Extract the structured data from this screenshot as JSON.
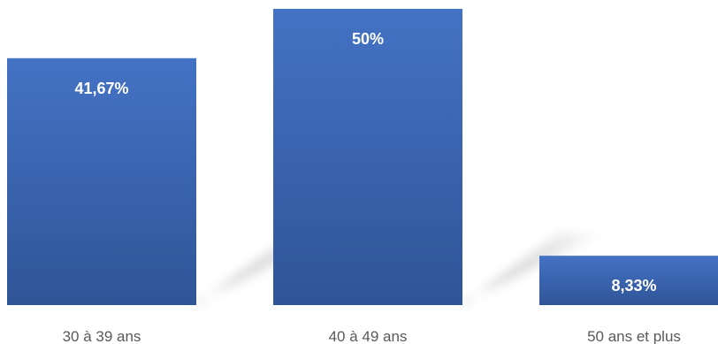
{
  "chart_data": {
    "type": "bar",
    "categories": [
      "30 à 39 ans",
      "40 à 49 ans",
      "50 ans et plus"
    ],
    "values": [
      41.67,
      50,
      8.33
    ],
    "data_labels": [
      "41,67%",
      "50%",
      "8,33%"
    ],
    "title": "",
    "xlabel": "",
    "ylabel": "",
    "ylim": [
      0,
      50
    ],
    "grid": false,
    "legend": "none",
    "colors": {
      "bar_top": "#4472C4",
      "bar_bottom": "#2F5597",
      "label_text": "#FFFFFF",
      "category_text": "#595959"
    }
  }
}
